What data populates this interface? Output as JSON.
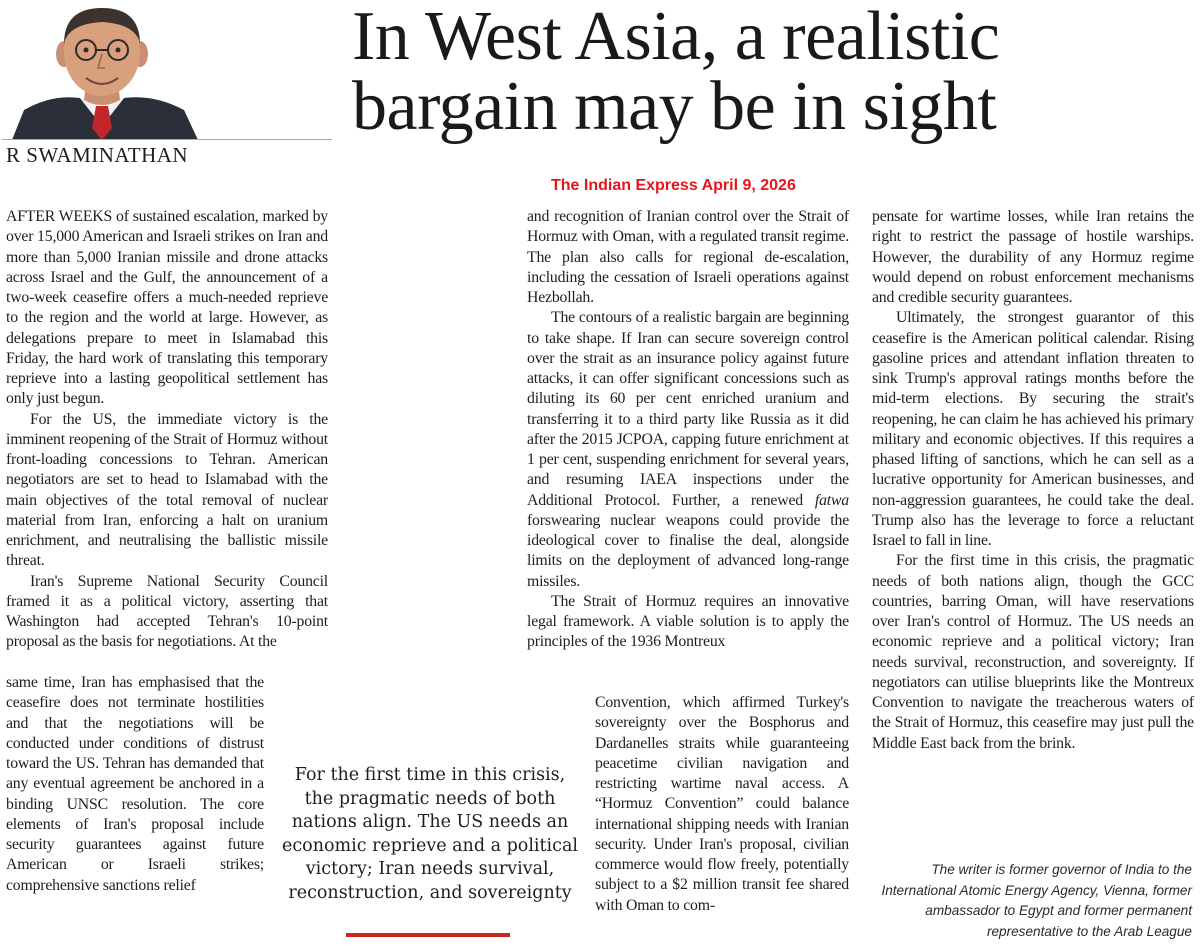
{
  "headline": {
    "line1": "In West Asia, a realistic",
    "line2": "bargain may be in sight"
  },
  "author": {
    "byline": "R SWAMINATHAN"
  },
  "source_note": "The Indian Express April 9, 2026",
  "column1": {
    "p1": "AFTER WEEKS of sustained escalation, marked by over 15,000 American and Israeli strikes on Iran and more than 5,000 Iranian missile and drone attacks across Israel and the Gulf, the announcement of a two-week ceasefire offers a much-needed reprieve to the region and the world at large. However, as delegations prepare to meet in Islamabad this Friday, the hard work of translating this temporary reprieve into a lasting geopolitical settlement has only just begun.",
    "p2": "For the US, the immediate victory is the imminent reopening of the Strait of Hormuz without front-loading concessions to Tehran. American negotiators are set to head to Islamabad with the main objectives of the total removal of nuclear material from Iran, enforcing a halt on uranium enrichment, and neutralising the ballistic missile threat.",
    "p3": "Iran's Supreme National Security Council framed it as a political victory, asserting that Washington had accepted Tehran's 10-point proposal as the basis for negotiations. At the",
    "p3_cont": "same time, Iran has emphasised that the ceasefire does not terminate hostilities and that the negotiations will be conducted under conditions of distrust toward the US. Tehran has demanded that any eventual agreement be anchored in a binding UNSC resolution. The core elements of Iran's proposal include security guarantees against future American or Israeli strikes; comprehensive sanctions relief"
  },
  "column2": {
    "p1": "and recognition of Iranian control over the Strait of Hormuz with Oman, with a regulated transit regime. The plan also calls for regional de-escalation, including the cessation of Israeli operations against Hezbollah.",
    "p2": "The contours of a realistic bargain are beginning to take shape. If Iran can secure sovereign control over the strait as an insurance policy against future attacks, it can offer significant concessions such as diluting its 60 per cent enriched uranium and transferring it to a third party like Russia as it did after the 2015 JCPOA, capping future enrichment at 1 per cent, suspending enrichment for several years, and resuming IAEA inspections under the Additional Protocol. Further, a renewed",
    "p2_italic": "fatwa",
    "p2_end": "forswearing nuclear weapons could provide the ideological cover to finalise the deal, alongside limits on the deployment of advanced long-range missiles.",
    "p3": "The Strait of Hormuz requires an innovative legal framework. A viable solution is to apply the principles of the 1936 Montreux",
    "p3_cont": "Convention, which affirmed Turkey's sovereignty over the Bosphorus and Dardanelles straits while guaranteeing peacetime civilian navigation and restricting wartime naval access. A “Hormuz Convention” could balance international shipping needs with Iranian security. Under Iran's proposal, civilian commerce would flow freely, potentially subject to a $2 million transit fee shared with Oman to com-"
  },
  "column3": {
    "p1": "pensate for wartime losses, while Iran retains the right to restrict the passage of hostile warships. However, the durability of any Hormuz regime would depend on robust enforcement mechanisms and credible security guarantees.",
    "p2": "Ultimately, the strongest guarantor of this ceasefire is the American political calendar. Rising gasoline prices and attendant inflation threaten to sink Trump's approval ratings months before the mid-term elections. By securing the strait's reopening, he can claim he has achieved his primary military and economic objectives. If this requires a phased lifting of sanctions, which he can sell as a lucrative opportunity for American businesses, and non-aggression guarantees, he could take the deal. Trump also has the leverage to force a reluctant Israel to fall in line.",
    "p3": "For the first time in this crisis, the pragmatic needs of both nations align, though the GCC countries, barring Oman, will have reservations over Iran's control of Hormuz. The US needs an economic reprieve and a political victory; Iran needs survival, reconstruction, and sovereignty. If negotiators can utilise blueprints like the Montreux Convention to navigate the treacherous waters of the Strait of Hormuz, this ceasefire may just pull the Middle East back from the brink."
  },
  "pullquote": "For the first time in this crisis, the pragmatic needs of both nations align. The US needs an economic reprieve and a political victory; Iran needs survival, reconstruction, and sovereignty",
  "author_note": "The writer is former governor of India to the International Atomic Energy Agency, Vienna, former ambassador to Egypt and former permanent representative to the Arab League",
  "colors": {
    "text": "#1e1e1e",
    "source_note": "#e8141b",
    "pullquote_rule": "#c8261e"
  }
}
